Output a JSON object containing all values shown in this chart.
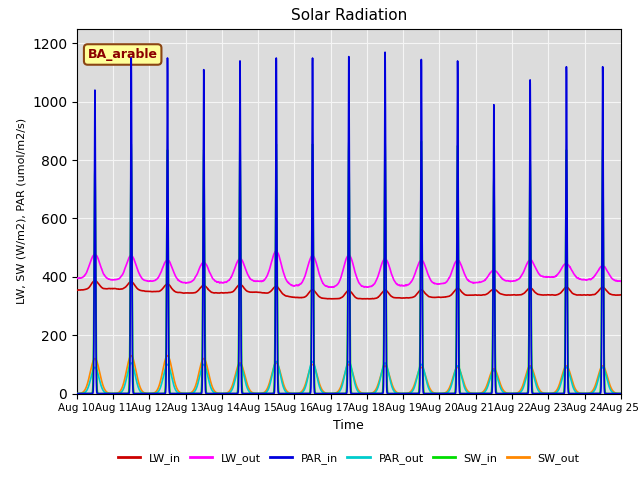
{
  "title": "Solar Radiation",
  "xlabel": "Time",
  "ylabel": "LW, SW (W/m2), PAR (umol/m2/s)",
  "annotation": "BA_arable",
  "xlim_days": [
    0,
    15
  ],
  "ylim": [
    0,
    1250
  ],
  "yticks": [
    0,
    200,
    400,
    600,
    800,
    1000,
    1200
  ],
  "background_color": "#DCDCDC",
  "grid_color": "#F5F5F5",
  "series": {
    "LW_in": {
      "color": "#CC0000",
      "lw": 1.2
    },
    "LW_out": {
      "color": "#FF00FF",
      "lw": 1.2
    },
    "PAR_in": {
      "color": "#0000DD",
      "lw": 1.2
    },
    "PAR_out": {
      "color": "#00CCCC",
      "lw": 1.2
    },
    "SW_in": {
      "color": "#00DD00",
      "lw": 1.2
    },
    "SW_out": {
      "color": "#FF8800",
      "lw": 1.2
    }
  },
  "start_day": 10,
  "num_days": 15,
  "par_in_peaks": [
    1040,
    1150,
    1150,
    1110,
    1140,
    1150,
    1150,
    1155,
    1170,
    1145,
    1140,
    990,
    1075,
    1120,
    1120
  ],
  "sw_in_peaks": [
    780,
    855,
    835,
    835,
    850,
    855,
    855,
    860,
    870,
    865,
    850,
    740,
    800,
    835,
    835
  ],
  "sw_out_peaks": [
    120,
    130,
    130,
    120,
    105,
    105,
    100,
    100,
    95,
    90,
    90,
    85,
    95,
    95,
    95
  ],
  "par_out_peaks": [
    90,
    105,
    100,
    100,
    100,
    110,
    110,
    110,
    105,
    100,
    95,
    80,
    90,
    90,
    90
  ],
  "lw_in_day": [
    355,
    360,
    350,
    345,
    345,
    348,
    330,
    325,
    325,
    328,
    330,
    338,
    338,
    338,
    338,
    338
  ],
  "lw_out_day": [
    395,
    390,
    385,
    380,
    380,
    385,
    370,
    365,
    365,
    370,
    375,
    380,
    385,
    400,
    390,
    385
  ],
  "lw_in_peaks": [
    30,
    28,
    28,
    26,
    28,
    28,
    28,
    28,
    28,
    26,
    26,
    20,
    24,
    26,
    26
  ],
  "lw_out_peaks": [
    85,
    85,
    75,
    70,
    80,
    110,
    105,
    110,
    95,
    85,
    80,
    40,
    65,
    50,
    50
  ]
}
